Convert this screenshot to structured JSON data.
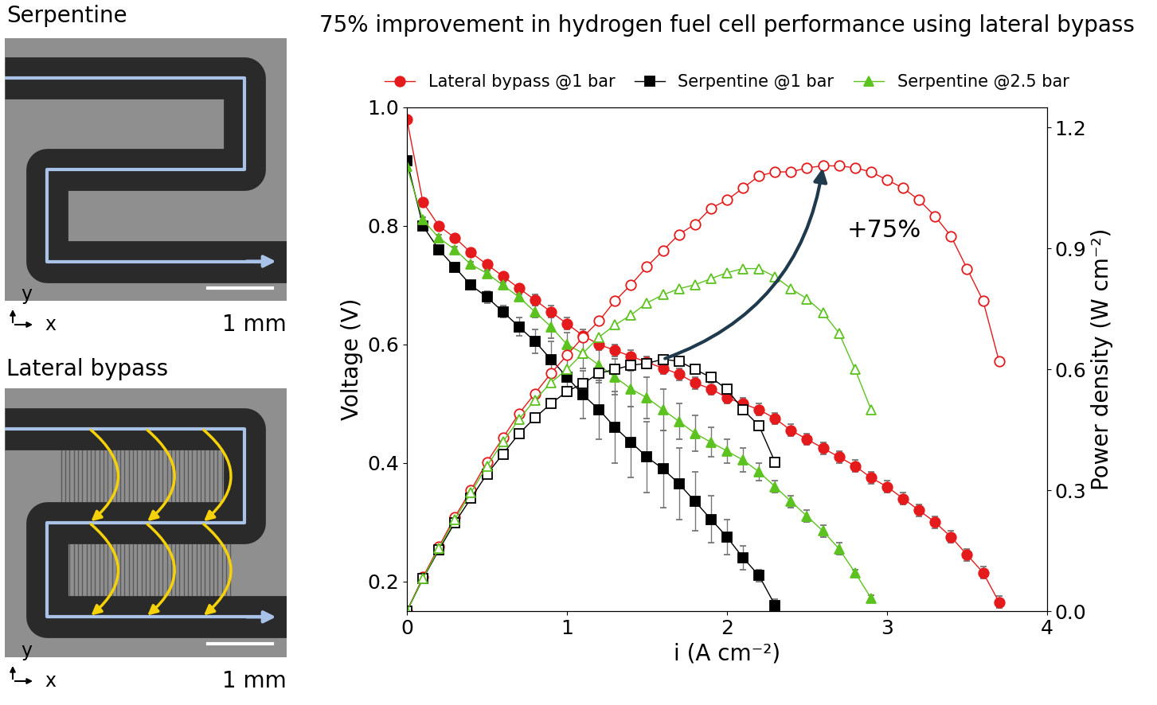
{
  "chart_data": {
    "type": "line",
    "title": "75% improvement in hydrogen fuel cell performance using lateral bypass",
    "x_label": "i (A cm⁻²)",
    "y_label": "Voltage (V)",
    "y2_label": "Power density (W cm⁻²)",
    "xlim": [
      0,
      4
    ],
    "xticks": [
      0,
      1,
      2,
      3,
      4
    ],
    "ylim": [
      0.15,
      1.0
    ],
    "yticks": [
      0.2,
      0.4,
      0.6,
      0.8,
      1.0
    ],
    "y2lim": [
      0.0,
      1.25
    ],
    "y2ticks": [
      0.0,
      0.3,
      0.6,
      0.9,
      1.2
    ],
    "legend": "top",
    "annotations": [
      {
        "text": "+75%"
      }
    ],
    "series": [
      {
        "name": "Lateral bypass @1 bar",
        "color": "#e41a1c",
        "marker": "circle",
        "axis": "y",
        "x": [
          0.0,
          0.1,
          0.2,
          0.3,
          0.4,
          0.5,
          0.6,
          0.7,
          0.8,
          0.9,
          1.0,
          1.1,
          1.2,
          1.3,
          1.4,
          1.5,
          1.6,
          1.7,
          1.8,
          1.9,
          2.0,
          2.1,
          2.2,
          2.3,
          2.4,
          2.5,
          2.6,
          2.7,
          2.8,
          2.9,
          3.0,
          3.1,
          3.2,
          3.3,
          3.4,
          3.5,
          3.6,
          3.7
        ],
        "values": [
          0.98,
          0.84,
          0.8,
          0.78,
          0.755,
          0.735,
          0.715,
          0.695,
          0.675,
          0.655,
          0.635,
          0.615,
          0.6,
          0.59,
          0.58,
          0.57,
          0.56,
          0.55,
          0.535,
          0.525,
          0.51,
          0.5,
          0.49,
          0.475,
          0.455,
          0.44,
          0.425,
          0.41,
          0.395,
          0.375,
          0.36,
          0.34,
          0.32,
          0.3,
          0.275,
          0.245,
          0.215,
          0.165
        ],
        "errors": [
          0.005,
          0.005,
          0.005,
          0.005,
          0.005,
          0.005,
          0.005,
          0.005,
          0.01,
          0.01,
          0.01,
          0.01,
          0.01,
          0.01,
          0.01,
          0.01,
          0.01,
          0.01,
          0.01,
          0.01,
          0.01,
          0.01,
          0.01,
          0.01,
          0.01,
          0.01,
          0.01,
          0.01,
          0.01,
          0.01,
          0.01,
          0.01,
          0.01,
          0.01,
          0.01,
          0.01,
          0.01,
          0.01
        ]
      },
      {
        "name": "Serpentine @1 bar",
        "color": "#000000",
        "marker": "square",
        "axis": "y",
        "x": [
          0.0,
          0.1,
          0.2,
          0.3,
          0.4,
          0.5,
          0.6,
          0.7,
          0.8,
          0.9,
          1.0,
          1.1,
          1.2,
          1.3,
          1.4,
          1.5,
          1.6,
          1.7,
          1.8,
          1.9,
          2.0,
          2.1,
          2.2,
          2.3
        ],
        "values": [
          0.91,
          0.8,
          0.76,
          0.73,
          0.7,
          0.68,
          0.655,
          0.63,
          0.605,
          0.575,
          0.545,
          0.515,
          0.49,
          0.46,
          0.435,
          0.41,
          0.39,
          0.365,
          0.335,
          0.305,
          0.275,
          0.24,
          0.21,
          0.16
        ],
        "errors": [
          0.005,
          0.005,
          0.005,
          0.005,
          0.005,
          0.01,
          0.01,
          0.015,
          0.02,
          0.03,
          0.03,
          0.04,
          0.05,
          0.06,
          0.06,
          0.06,
          0.065,
          0.06,
          0.05,
          0.04,
          0.03,
          0.02,
          0.01,
          0.01
        ]
      },
      {
        "name": "Serpentine @2.5 bar",
        "color": "#5cc21f",
        "marker": "triangle",
        "axis": "y",
        "x": [
          0.0,
          0.1,
          0.2,
          0.3,
          0.4,
          0.5,
          0.6,
          0.7,
          0.8,
          0.9,
          1.0,
          1.1,
          1.2,
          1.3,
          1.4,
          1.5,
          1.6,
          1.7,
          1.8,
          1.9,
          2.0,
          2.1,
          2.2,
          2.3,
          2.4,
          2.5,
          2.6,
          2.7,
          2.8,
          2.9
        ],
        "values": [
          0.9,
          0.81,
          0.78,
          0.76,
          0.735,
          0.72,
          0.7,
          0.68,
          0.655,
          0.63,
          0.6,
          0.585,
          0.565,
          0.545,
          0.525,
          0.51,
          0.49,
          0.47,
          0.45,
          0.435,
          0.42,
          0.405,
          0.385,
          0.36,
          0.335,
          0.31,
          0.285,
          0.255,
          0.215,
          0.172
        ],
        "errors": [
          0.005,
          0.005,
          0.005,
          0.005,
          0.005,
          0.005,
          0.005,
          0.005,
          0.01,
          0.02,
          0.02,
          0.025,
          0.03,
          0.03,
          0.03,
          0.035,
          0.035,
          0.03,
          0.03,
          0.025,
          0.02,
          0.02,
          0.015,
          0.01,
          0.01,
          0.01,
          0.01,
          0.01,
          0.005,
          0.005
        ]
      },
      {
        "color": "#e41a1c",
        "marker": "circle",
        "axis": "y2",
        "x": [
          0.0,
          0.1,
          0.2,
          0.3,
          0.4,
          0.5,
          0.6,
          0.7,
          0.8,
          0.9,
          1.0,
          1.1,
          1.2,
          1.3,
          1.4,
          1.5,
          1.6,
          1.7,
          1.8,
          1.9,
          2.0,
          2.1,
          2.2,
          2.3,
          2.4,
          2.5,
          2.6,
          2.7,
          2.8,
          2.9,
          3.0,
          3.1,
          3.2,
          3.3,
          3.4,
          3.5,
          3.6,
          3.7
        ],
        "values": [
          0.0,
          0.084,
          0.16,
          0.234,
          0.3,
          0.37,
          0.43,
          0.49,
          0.54,
          0.59,
          0.635,
          0.68,
          0.72,
          0.77,
          0.81,
          0.855,
          0.895,
          0.935,
          0.96,
          1.0,
          1.02,
          1.05,
          1.08,
          1.09,
          1.09,
          1.1,
          1.105,
          1.105,
          1.1,
          1.09,
          1.07,
          1.05,
          1.02,
          0.98,
          0.93,
          0.85,
          0.77,
          0.62
        ]
      },
      {
        "color": "#000000",
        "marker": "square",
        "axis": "y2",
        "x": [
          0.0,
          0.1,
          0.2,
          0.3,
          0.4,
          0.5,
          0.6,
          0.7,
          0.8,
          0.9,
          1.0,
          1.1,
          1.2,
          1.3,
          1.4,
          1.5,
          1.6,
          1.7,
          1.8,
          1.9,
          2.0,
          2.1,
          2.2,
          2.3
        ],
        "values": [
          0.0,
          0.08,
          0.152,
          0.22,
          0.28,
          0.34,
          0.39,
          0.44,
          0.48,
          0.515,
          0.545,
          0.565,
          0.59,
          0.6,
          0.61,
          0.615,
          0.625,
          0.62,
          0.6,
          0.58,
          0.55,
          0.5,
          0.46,
          0.37
        ]
      },
      {
        "color": "#5cc21f",
        "marker": "triangle",
        "axis": "y2",
        "x": [
          0.0,
          0.1,
          0.2,
          0.3,
          0.4,
          0.5,
          0.6,
          0.7,
          0.8,
          0.9,
          1.0,
          1.1,
          1.2,
          1.3,
          1.4,
          1.5,
          1.6,
          1.7,
          1.8,
          1.9,
          2.0,
          2.1,
          2.2,
          2.3,
          2.4,
          2.5,
          2.6,
          2.7,
          2.8,
          2.9
        ],
        "values": [
          0.0,
          0.081,
          0.156,
          0.228,
          0.294,
          0.36,
          0.42,
          0.476,
          0.524,
          0.567,
          0.6,
          0.64,
          0.68,
          0.71,
          0.735,
          0.765,
          0.785,
          0.8,
          0.81,
          0.825,
          0.84,
          0.85,
          0.85,
          0.83,
          0.8,
          0.775,
          0.74,
          0.69,
          0.6,
          0.5
        ]
      }
    ]
  },
  "panels": [
    {
      "title": "Serpentine",
      "scale_bar": "1 mm",
      "axis_labels": [
        "x",
        "y"
      ]
    },
    {
      "title": "Lateral bypass",
      "scale_bar": "1 mm",
      "axis_labels": [
        "x",
        "y"
      ]
    }
  ]
}
